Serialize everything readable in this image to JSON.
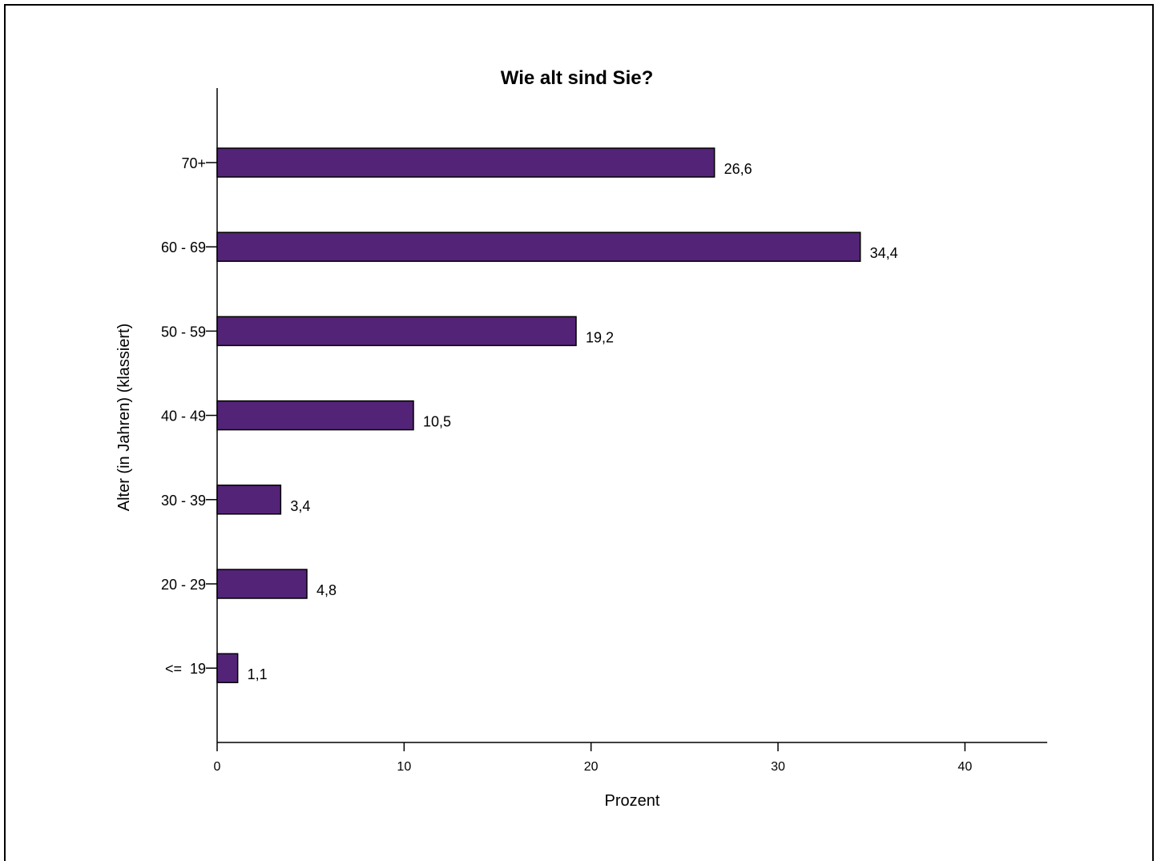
{
  "chart_data": {
    "type": "bar",
    "orientation": "horizontal",
    "title": "Wie alt sind Sie?",
    "xlabel": "Prozent",
    "ylabel": "Alter (in Jahren) (klassiert)",
    "categories": [
      "70+",
      "60 - 69",
      "50 - 59",
      "40 - 49",
      "30 - 39",
      "20 - 29",
      "<=  19"
    ],
    "values": [
      26.6,
      34.4,
      19.2,
      10.5,
      3.4,
      4.8,
      1.1
    ],
    "value_labels": [
      "26,6",
      "34,4",
      "19,2",
      "10,5",
      "3,4",
      "4,8",
      "1,1"
    ],
    "xlim": [
      0,
      44.4
    ],
    "xticks": [
      "0",
      "10",
      "20",
      "30",
      "40"
    ],
    "grid": false,
    "legend": false,
    "bar_color": "#532378",
    "bar_border_color": "#000000"
  }
}
